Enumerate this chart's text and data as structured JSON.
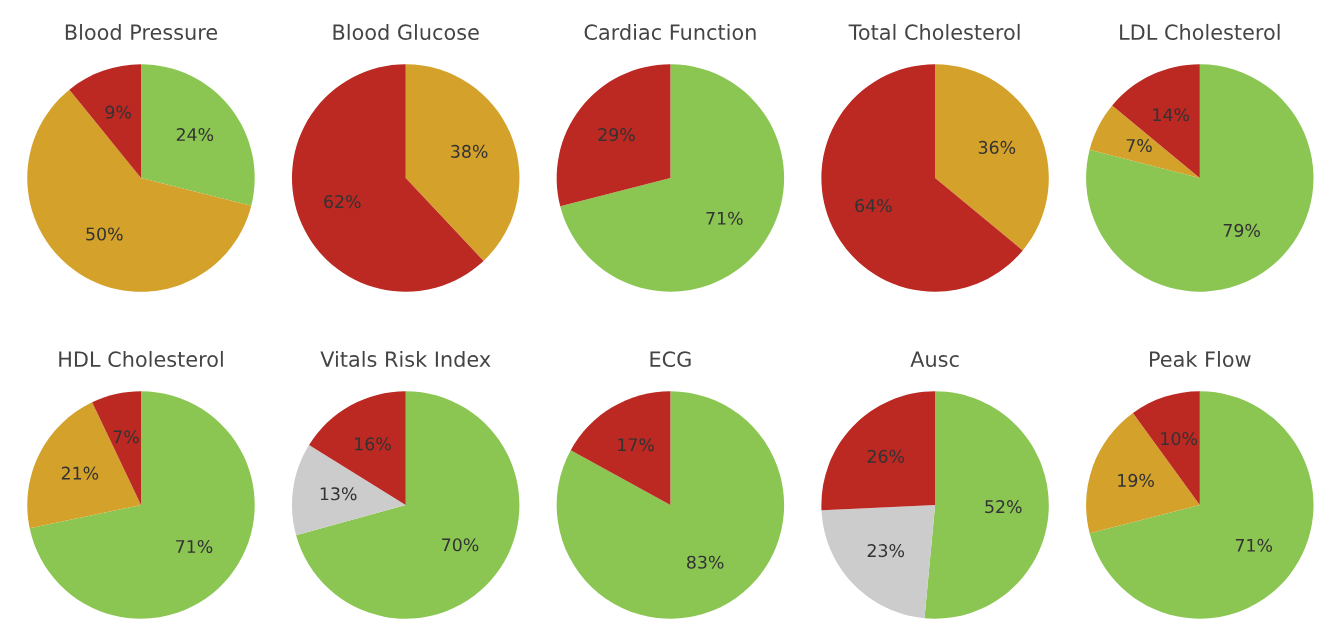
{
  "chart_data": [
    {
      "type": "pie",
      "title": "Blood Pressure",
      "categories": [
        null,
        null,
        null
      ],
      "values": [
        24,
        50,
        9
      ],
      "colors": [
        "#8bc653",
        "#d4a22a",
        "#bc2822"
      ],
      "value_labels": [
        "24%",
        "50%",
        "9%"
      ]
    },
    {
      "type": "pie",
      "title": "Blood Glucose",
      "categories": [
        null,
        null
      ],
      "values": [
        38,
        62
      ],
      "colors": [
        "#d4a22a",
        "#bc2822"
      ],
      "value_labels": [
        "38%",
        "62%"
      ]
    },
    {
      "type": "pie",
      "title": "Cardiac Function",
      "categories": [
        null,
        null
      ],
      "values": [
        71,
        29
      ],
      "colors": [
        "#8bc653",
        "#bc2822"
      ],
      "value_labels": [
        "71%",
        "29%"
      ]
    },
    {
      "type": "pie",
      "title": "Total Cholesterol",
      "categories": [
        null,
        null
      ],
      "values": [
        36,
        64
      ],
      "colors": [
        "#d4a22a",
        "#bc2822"
      ],
      "value_labels": [
        "36%",
        "64%"
      ]
    },
    {
      "type": "pie",
      "title": "LDL Cholesterol",
      "categories": [
        null,
        null,
        null
      ],
      "values": [
        79,
        7,
        14
      ],
      "colors": [
        "#8bc653",
        "#d4a22a",
        "#bc2822"
      ],
      "value_labels": [
        "79%",
        "7%",
        "14%"
      ]
    },
    {
      "type": "pie",
      "title": "HDL Cholesterol",
      "categories": [
        null,
        null,
        null
      ],
      "values": [
        71,
        21,
        7
      ],
      "colors": [
        "#8bc653",
        "#d4a22a",
        "#bc2822"
      ],
      "value_labels": [
        "71%",
        "21%",
        "7%"
      ]
    },
    {
      "type": "pie",
      "title": "Vitals Risk Index",
      "categories": [
        null,
        null,
        null
      ],
      "values": [
        70,
        13,
        16
      ],
      "colors": [
        "#8bc653",
        "#cccccc",
        "#bc2822"
      ],
      "value_labels": [
        "70%",
        "13%",
        "16%"
      ]
    },
    {
      "type": "pie",
      "title": "ECG",
      "categories": [
        null,
        null
      ],
      "values": [
        83,
        17
      ],
      "colors": [
        "#8bc653",
        "#bc2822"
      ],
      "value_labels": [
        "83%",
        "17%"
      ]
    },
    {
      "type": "pie",
      "title": "Ausc",
      "categories": [
        null,
        null,
        null
      ],
      "values": [
        52,
        23,
        26
      ],
      "colors": [
        "#8bc653",
        "#cccccc",
        "#bc2822"
      ],
      "value_labels": [
        "52%",
        "23%",
        "26%"
      ]
    },
    {
      "type": "pie",
      "title": "Peak Flow",
      "categories": [
        null,
        null,
        null
      ],
      "values": [
        71,
        19,
        10
      ],
      "colors": [
        "#8bc653",
        "#d4a22a",
        "#bc2822"
      ],
      "value_labels": [
        "71%",
        "19%",
        "10%"
      ]
    }
  ]
}
